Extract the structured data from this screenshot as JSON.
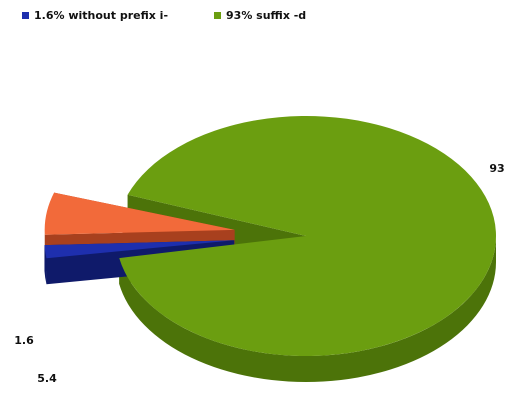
{
  "chart_data": {
    "type": "pie",
    "style": "3d-exploded",
    "legend_position": "top-left",
    "title": "",
    "legend": [
      {
        "label": "1.6% without prefix i-",
        "color": "#1e2fae"
      },
      {
        "label": "93% suffix -d",
        "color": "#6b9e10"
      }
    ],
    "slices": [
      {
        "label": "93",
        "value": 93,
        "color": "#6b9e10",
        "side_color": "#4c7309",
        "exploded": false
      },
      {
        "label": "5.4",
        "value": 5.4,
        "color": "#f26a3a",
        "side_color": "#a8401e",
        "exploded": true
      },
      {
        "label": "1.6",
        "value": 1.6,
        "color": "#1e2fae",
        "side_color": "#0f1a6a",
        "exploded": true
      }
    ]
  }
}
